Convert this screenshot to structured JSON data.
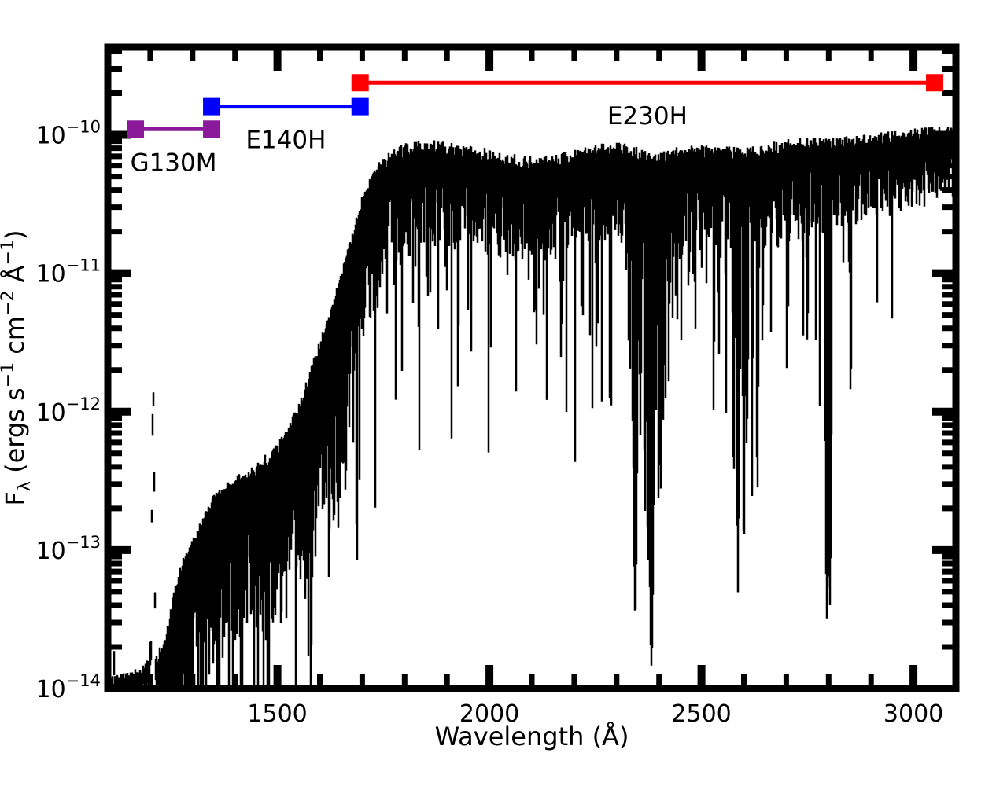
{
  "figure": {
    "background_color": "#ffffff",
    "frame_color": "#000000"
  },
  "chart_data": {
    "type": "line",
    "title": "",
    "xlabel": "Wavelength (Å)",
    "ylabel_parts": [
      {
        "t": "F"
      },
      {
        "sub": "λ"
      },
      {
        "t": " (ergs s"
      },
      {
        "sup": "−1"
      },
      {
        "t": " cm"
      },
      {
        "sup": "−2"
      },
      {
        "t": " Å"
      },
      {
        "sup": "−1"
      },
      {
        "t": ")"
      }
    ],
    "xlim": [
      1100,
      3100
    ],
    "ylim": [
      1e-14,
      4.3e-10
    ],
    "y_scale": "log",
    "grid": false,
    "x_ticks_major": [
      1500,
      2000,
      2500,
      3000
    ],
    "x_tick_labels": [
      "1500",
      "2000",
      "2500",
      "3000"
    ],
    "x_minor_step": 100,
    "y_major_exponents": [
      -10,
      -11,
      -12,
      -13,
      -14
    ],
    "y_tick_base": "10",
    "y_tick_exponent_labels": [
      "−10",
      "−11",
      "−12",
      "−13",
      "−14"
    ],
    "series_color": "#000000",
    "random_seed": 42,
    "spectrum_continuum_log10_flux": [
      [
        1100,
        -13.95
      ],
      [
        1160,
        -13.92
      ],
      [
        1205,
        -13.82
      ],
      [
        1235,
        -13.7
      ],
      [
        1255,
        -13.35
      ],
      [
        1275,
        -13.12
      ],
      [
        1300,
        -12.95
      ],
      [
        1330,
        -12.75
      ],
      [
        1360,
        -12.6
      ],
      [
        1400,
        -12.52
      ],
      [
        1450,
        -12.42
      ],
      [
        1500,
        -12.28
      ],
      [
        1530,
        -12.12
      ],
      [
        1560,
        -11.9
      ],
      [
        1590,
        -11.62
      ],
      [
        1620,
        -11.36
      ],
      [
        1650,
        -11.05
      ],
      [
        1680,
        -10.72
      ],
      [
        1700,
        -10.48
      ],
      [
        1720,
        -10.32
      ],
      [
        1745,
        -10.22
      ],
      [
        1770,
        -10.16
      ],
      [
        1800,
        -10.11
      ],
      [
        1850,
        -10.08
      ],
      [
        1900,
        -10.1
      ],
      [
        1950,
        -10.12
      ],
      [
        2000,
        -10.15
      ],
      [
        2060,
        -10.19
      ],
      [
        2120,
        -10.21
      ],
      [
        2180,
        -10.17
      ],
      [
        2240,
        -10.13
      ],
      [
        2300,
        -10.09
      ],
      [
        2340,
        -10.13
      ],
      [
        2390,
        -10.18
      ],
      [
        2440,
        -10.14
      ],
      [
        2500,
        -10.12
      ],
      [
        2560,
        -10.13
      ],
      [
        2610,
        -10.14
      ],
      [
        2660,
        -10.1
      ],
      [
        2710,
        -10.07
      ],
      [
        2760,
        -10.06
      ],
      [
        2810,
        -10.07
      ],
      [
        2860,
        -10.05
      ],
      [
        2910,
        -10.03
      ],
      [
        2960,
        -10.02
      ],
      [
        3010,
        -10.0
      ],
      [
        3060,
        -9.99
      ],
      [
        3100,
        -9.98
      ]
    ],
    "emission_lines": [
      {
        "wavelength": 1207,
        "peak_log10_flux": -11.78,
        "half_width": 5
      }
    ],
    "absorption_lines": [
      [
        1754,
        -11.1,
        2
      ],
      [
        1790,
        -10.95,
        2
      ],
      [
        1808,
        -11.05,
        2
      ],
      [
        1838,
        -10.8,
        2
      ],
      [
        1855,
        -11.15,
        2.5
      ],
      [
        1880,
        -10.9,
        2
      ],
      [
        1926,
        -11.85,
        2.5
      ],
      [
        1960,
        -10.8,
        2
      ],
      [
        2026,
        -10.9,
        2
      ],
      [
        2056,
        -11.0,
        2
      ],
      [
        2100,
        -10.85,
        2
      ],
      [
        2126,
        -10.75,
        2
      ],
      [
        2155,
        -11.05,
        2
      ],
      [
        2195,
        -10.8,
        2
      ],
      [
        2217,
        -11.25,
        2.5
      ],
      [
        2260,
        -10.85,
        2
      ],
      [
        2298,
        -10.7,
        2
      ],
      [
        2344,
        -13.5,
        5
      ],
      [
        2356,
        -12.2,
        3
      ],
      [
        2367,
        -12.7,
        3
      ],
      [
        2374,
        -13.1,
        3
      ],
      [
        2382,
        -13.8,
        6
      ],
      [
        2400,
        -12.4,
        3
      ],
      [
        2410,
        -12.1,
        3
      ],
      [
        2470,
        -11.2,
        2.5
      ],
      [
        2484,
        -11.05,
        2
      ],
      [
        2512,
        -11.1,
        2
      ],
      [
        2576,
        -12.5,
        3
      ],
      [
        2586,
        -13.3,
        3
      ],
      [
        2600,
        -13.0,
        3
      ],
      [
        2607,
        -12.3,
        3
      ],
      [
        2620,
        -11.9,
        3
      ],
      [
        2632,
        -12.6,
        3
      ],
      [
        2740,
        -11.45,
        2.5
      ],
      [
        2750,
        -11.6,
        2.5
      ],
      [
        2796,
        -13.5,
        4
      ],
      [
        2803,
        -13.4,
        4
      ],
      [
        2852,
        -11.9,
        3
      ]
    ],
    "noise_band_depth_decades": [
      [
        1100,
        0.12
      ],
      [
        1215,
        0.14
      ],
      [
        1255,
        0.6
      ],
      [
        1320,
        0.8
      ],
      [
        1430,
        0.7
      ],
      [
        1530,
        0.85
      ],
      [
        1600,
        1.05
      ],
      [
        1660,
        1.1
      ],
      [
        1705,
        0.75
      ],
      [
        1765,
        0.5
      ],
      [
        1830,
        0.45
      ],
      [
        2290,
        0.42
      ],
      [
        2360,
        0.55
      ],
      [
        2430,
        0.5
      ],
      [
        2620,
        0.45
      ],
      [
        2800,
        0.4
      ],
      [
        2960,
        0.34
      ],
      [
        3100,
        0.3
      ]
    ],
    "deep_line_probability": [
      [
        1100,
        0.02
      ],
      [
        1245,
        0.03
      ],
      [
        1262,
        0.3
      ],
      [
        1650,
        0.3
      ],
      [
        1715,
        0.16
      ],
      [
        1780,
        0.11
      ],
      [
        2315,
        0.11
      ],
      [
        2332,
        0.5
      ],
      [
        2425,
        0.5
      ],
      [
        2445,
        0.2
      ],
      [
        2650,
        0.15
      ],
      [
        2820,
        0.1
      ],
      [
        2895,
        0.08
      ],
      [
        3100,
        0.05
      ]
    ],
    "deep_line_max_depth_decades": [
      [
        1100,
        3.9
      ],
      [
        1240,
        3.9
      ],
      [
        1700,
        3.9
      ],
      [
        1760,
        2.6
      ],
      [
        2310,
        2.6
      ],
      [
        2330,
        3.9
      ],
      [
        2425,
        3.9
      ],
      [
        2455,
        2.9
      ],
      [
        2700,
        2.9
      ],
      [
        2770,
        3.2
      ],
      [
        2865,
        2.4
      ],
      [
        2890,
        1.8
      ],
      [
        3100,
        1.2
      ]
    ],
    "instrument_bands": [
      {
        "label": "G130M",
        "color": "#8b1a9b",
        "wavelength_range": [
          1165,
          1345
        ],
        "flux": 1.1e-10
      },
      {
        "label": "E140H",
        "color": "#0000ff",
        "wavelength_range": [
          1345,
          1695
        ],
        "flux": 1.6e-10
      },
      {
        "label": "E230H",
        "color": "#ff0000",
        "wavelength_range": [
          1695,
          3050
        ],
        "flux": 2.38e-10
      }
    ]
  }
}
